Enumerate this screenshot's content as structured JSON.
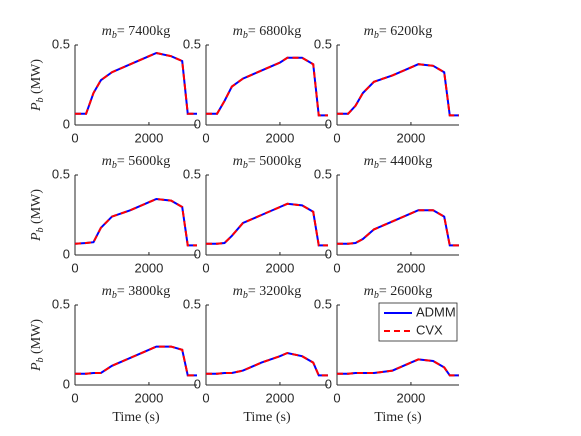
{
  "chart_data": [
    {
      "type": "line",
      "title": {
        "symbol": "m",
        "subscript": "b",
        "text": "= 7400kg"
      },
      "ylabel": {
        "symbol": "P",
        "subscript": "b",
        "text": " (MW)"
      },
      "x": [
        0,
        300,
        500,
        700,
        1000,
        1500,
        2000,
        2200,
        2600,
        2900,
        3050,
        3300
      ],
      "series": [
        {
          "color": "#0000ff",
          "values": [
            0.07,
            0.07,
            0.2,
            0.28,
            0.33,
            0.38,
            0.43,
            0.45,
            0.43,
            0.4,
            0.07,
            0.07
          ]
        },
        {
          "color": "#ff0000",
          "dashed": true,
          "values": [
            0.07,
            0.07,
            0.2,
            0.28,
            0.33,
            0.38,
            0.43,
            0.45,
            0.43,
            0.4,
            0.07,
            0.07
          ]
        }
      ],
      "xlim": [
        0,
        3300
      ],
      "xticks": [
        0,
        2000
      ],
      "ylim": [
        0,
        0.5
      ],
      "yticks": [
        0,
        0.5
      ]
    },
    {
      "type": "line",
      "title": {
        "symbol": "m",
        "subscript": "b",
        "text": "= 6800kg"
      },
      "x": [
        0,
        300,
        500,
        700,
        1000,
        1500,
        2000,
        2200,
        2600,
        2900,
        3050,
        3300
      ],
      "series": [
        {
          "color": "#0000ff",
          "values": [
            0.07,
            0.07,
            0.15,
            0.24,
            0.29,
            0.34,
            0.39,
            0.42,
            0.42,
            0.38,
            0.06,
            0.06
          ]
        },
        {
          "color": "#ff0000",
          "dashed": true,
          "values": [
            0.07,
            0.07,
            0.15,
            0.24,
            0.29,
            0.34,
            0.39,
            0.42,
            0.42,
            0.38,
            0.06,
            0.06
          ]
        }
      ],
      "xlim": [
        0,
        3300
      ],
      "xticks": [
        0,
        2000
      ],
      "ylim": [
        0,
        0.5
      ],
      "yticks": [
        0,
        0.5
      ]
    },
    {
      "type": "line",
      "title": {
        "symbol": "m",
        "subscript": "b",
        "text": "= 6200kg"
      },
      "x": [
        0,
        300,
        500,
        700,
        1000,
        1500,
        2000,
        2200,
        2600,
        2900,
        3050,
        3300
      ],
      "series": [
        {
          "color": "#0000ff",
          "values": [
            0.07,
            0.07,
            0.12,
            0.2,
            0.27,
            0.31,
            0.36,
            0.38,
            0.37,
            0.33,
            0.06,
            0.06
          ]
        },
        {
          "color": "#ff0000",
          "dashed": true,
          "values": [
            0.07,
            0.07,
            0.12,
            0.2,
            0.27,
            0.31,
            0.36,
            0.38,
            0.37,
            0.33,
            0.06,
            0.06
          ]
        }
      ],
      "xlim": [
        0,
        3300
      ],
      "xticks": [
        0,
        2000
      ],
      "ylim": [
        0,
        0.5
      ],
      "yticks": [
        0,
        0.5
      ]
    },
    {
      "type": "line",
      "title": {
        "symbol": "m",
        "subscript": "b",
        "text": "= 5600kg"
      },
      "ylabel": {
        "symbol": "P",
        "subscript": "b",
        "text": " (MW)"
      },
      "x": [
        0,
        300,
        500,
        700,
        1000,
        1500,
        2000,
        2200,
        2600,
        2900,
        3050,
        3300
      ],
      "series": [
        {
          "color": "#0000ff",
          "values": [
            0.07,
            0.075,
            0.08,
            0.17,
            0.24,
            0.28,
            0.33,
            0.35,
            0.34,
            0.3,
            0.06,
            0.06
          ]
        },
        {
          "color": "#ff0000",
          "dashed": true,
          "values": [
            0.07,
            0.075,
            0.08,
            0.17,
            0.24,
            0.28,
            0.33,
            0.35,
            0.34,
            0.3,
            0.06,
            0.06
          ]
        }
      ],
      "xlim": [
        0,
        3300
      ],
      "xticks": [
        0,
        2000
      ],
      "ylim": [
        0,
        0.5
      ],
      "yticks": [
        0,
        0.5
      ]
    },
    {
      "type": "line",
      "title": {
        "symbol": "m",
        "subscript": "b",
        "text": "= 5000kg"
      },
      "x": [
        0,
        300,
        500,
        700,
        1000,
        1500,
        2000,
        2200,
        2600,
        2900,
        3050,
        3300
      ],
      "series": [
        {
          "color": "#0000ff",
          "values": [
            0.07,
            0.07,
            0.075,
            0.12,
            0.2,
            0.25,
            0.3,
            0.32,
            0.31,
            0.27,
            0.06,
            0.06
          ]
        },
        {
          "color": "#ff0000",
          "dashed": true,
          "values": [
            0.07,
            0.07,
            0.075,
            0.12,
            0.2,
            0.25,
            0.3,
            0.32,
            0.31,
            0.27,
            0.06,
            0.06
          ]
        }
      ],
      "xlim": [
        0,
        3300
      ],
      "xticks": [
        0,
        2000
      ],
      "ylim": [
        0,
        0.5
      ],
      "yticks": [
        0,
        0.5
      ]
    },
    {
      "type": "line",
      "title": {
        "symbol": "m",
        "subscript": "b",
        "text": "= 4400kg"
      },
      "x": [
        0,
        300,
        500,
        700,
        1000,
        1500,
        2000,
        2200,
        2600,
        2900,
        3050,
        3300
      ],
      "series": [
        {
          "color": "#0000ff",
          "values": [
            0.07,
            0.07,
            0.075,
            0.1,
            0.16,
            0.21,
            0.26,
            0.28,
            0.28,
            0.24,
            0.06,
            0.06
          ]
        },
        {
          "color": "#ff0000",
          "dashed": true,
          "values": [
            0.07,
            0.07,
            0.075,
            0.1,
            0.16,
            0.21,
            0.26,
            0.28,
            0.28,
            0.24,
            0.06,
            0.06
          ]
        }
      ],
      "xlim": [
        0,
        3300
      ],
      "xticks": [
        0,
        2000
      ],
      "ylim": [
        0,
        0.5
      ],
      "yticks": [
        0,
        0.5
      ]
    },
    {
      "type": "line",
      "title": {
        "symbol": "m",
        "subscript": "b",
        "text": "= 3800kg"
      },
      "ylabel": {
        "symbol": "P",
        "subscript": "b",
        "text": " (MW)"
      },
      "xlabel": "Time (s)",
      "x": [
        0,
        300,
        500,
        700,
        1000,
        1500,
        2000,
        2200,
        2600,
        2900,
        3050,
        3300
      ],
      "series": [
        {
          "color": "#0000ff",
          "values": [
            0.07,
            0.07,
            0.075,
            0.075,
            0.12,
            0.17,
            0.22,
            0.24,
            0.24,
            0.22,
            0.06,
            0.06
          ]
        },
        {
          "color": "#ff0000",
          "dashed": true,
          "values": [
            0.07,
            0.07,
            0.075,
            0.075,
            0.12,
            0.17,
            0.22,
            0.24,
            0.24,
            0.22,
            0.06,
            0.06
          ]
        }
      ],
      "xlim": [
        0,
        3300
      ],
      "xticks": [
        0,
        2000
      ],
      "ylim": [
        0,
        0.5
      ],
      "yticks": [
        0,
        0.5
      ]
    },
    {
      "type": "line",
      "title": {
        "symbol": "m",
        "subscript": "b",
        "text": "= 3200kg"
      },
      "xlabel": "Time (s)",
      "x": [
        0,
        300,
        500,
        700,
        1000,
        1500,
        2000,
        2200,
        2600,
        2900,
        3050,
        3300
      ],
      "series": [
        {
          "color": "#0000ff",
          "values": [
            0.07,
            0.07,
            0.075,
            0.075,
            0.09,
            0.14,
            0.18,
            0.2,
            0.18,
            0.14,
            0.06,
            0.06
          ]
        },
        {
          "color": "#ff0000",
          "dashed": true,
          "values": [
            0.07,
            0.07,
            0.075,
            0.075,
            0.09,
            0.14,
            0.18,
            0.2,
            0.18,
            0.14,
            0.06,
            0.06
          ]
        }
      ],
      "xlim": [
        0,
        3300
      ],
      "xticks": [
        0,
        2000
      ],
      "ylim": [
        0,
        0.5
      ],
      "yticks": [
        0,
        0.5
      ]
    },
    {
      "type": "line",
      "title": {
        "symbol": "m",
        "subscript": "b",
        "text": "= 2600kg"
      },
      "xlabel": "Time (s)",
      "legend": "upper right",
      "x": [
        0,
        300,
        500,
        700,
        1000,
        1500,
        2000,
        2200,
        2600,
        2900,
        3050,
        3300
      ],
      "series": [
        {
          "name": "ADMM",
          "color": "#0000ff",
          "values": [
            0.07,
            0.07,
            0.075,
            0.075,
            0.075,
            0.09,
            0.14,
            0.16,
            0.15,
            0.11,
            0.06,
            0.06
          ]
        },
        {
          "name": "CVX",
          "color": "#ff0000",
          "dashed": true,
          "values": [
            0.07,
            0.07,
            0.075,
            0.075,
            0.075,
            0.09,
            0.14,
            0.16,
            0.15,
            0.11,
            0.06,
            0.06
          ]
        }
      ],
      "xlim": [
        0,
        3300
      ],
      "xticks": [
        0,
        2000
      ],
      "ylim": [
        0,
        0.5
      ],
      "yticks": [
        0,
        0.5
      ]
    }
  ]
}
